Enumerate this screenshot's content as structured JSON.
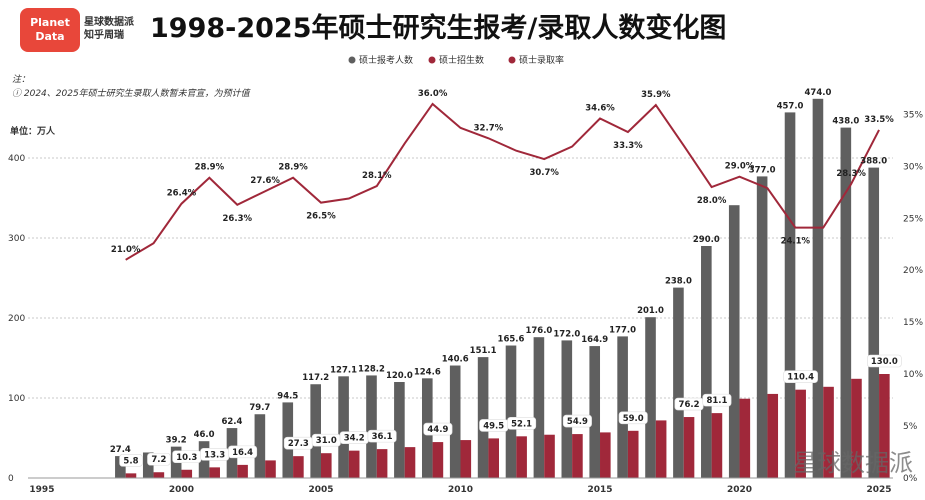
{
  "header": {
    "logo_line1": "Planet",
    "logo_line2": "Data",
    "brand_line1": "星球数据派",
    "brand_line2": "知乎周瑞",
    "title": "1998-2025年硕士研究生报考/录取人数变化图"
  },
  "note": {
    "line1": "注：",
    "line2": "ⓘ 2024、2025年硕士研究生录取人数暂未官宣，为预计值"
  },
  "unit_label": "单位：万人",
  "watermark": "星球数据派",
  "colors": {
    "applicants": "#5f5f5f",
    "admitted": "#a0283a",
    "rate_line": "#a0283a"
  },
  "chart_data": {
    "type": "bar",
    "series": [
      {
        "name": "硕士报考人数",
        "type": "bar",
        "x": [
          1998,
          1999,
          2000,
          2001,
          2002,
          2003,
          2004,
          2005,
          2006,
          2007,
          2008,
          2009,
          2010,
          2011,
          2012,
          2013,
          2014,
          2015,
          2016,
          2017,
          2018,
          2019,
          2020,
          2021,
          2022,
          2023,
          2024,
          2025
        ],
        "values": [
          27.4,
          31.9,
          39.2,
          46.0,
          62.4,
          79.7,
          94.5,
          117.2,
          127.1,
          128.2,
          120.0,
          124.6,
          140.6,
          151.1,
          165.6,
          176.0,
          172.0,
          164.9,
          177.0,
          201.0,
          238.0,
          290.0,
          341.0,
          377.0,
          457.0,
          474.0,
          438.0,
          388.0
        ],
        "labels": [
          "27.4",
          "",
          "39.2",
          "46.0",
          "62.4",
          "79.7",
          "94.5",
          "117.2",
          "127.1",
          "128.2",
          "120.0",
          "124.6",
          "140.6",
          "151.1",
          "165.6",
          "176.0",
          "172.0",
          "164.9",
          "177.0",
          "201.0",
          "238.0",
          "290.0",
          "",
          "377.0",
          "457.0",
          "474.0",
          "438.0",
          "388.0"
        ]
      },
      {
        "name": "硕士招生数",
        "type": "bar",
        "x": [
          1998,
          1999,
          2000,
          2001,
          2002,
          2003,
          2004,
          2005,
          2006,
          2007,
          2008,
          2009,
          2010,
          2011,
          2012,
          2013,
          2014,
          2015,
          2016,
          2017,
          2018,
          2019,
          2020,
          2021,
          2022,
          2023,
          2024,
          2025
        ],
        "values": [
          5.8,
          7.2,
          10.3,
          13.3,
          16.4,
          22.0,
          27.3,
          31.0,
          34.2,
          36.1,
          38.6,
          44.9,
          47.4,
          49.5,
          52.1,
          54.1,
          54.9,
          57.0,
          59.0,
          72.0,
          76.2,
          81.1,
          99.1,
          105.1,
          110.4,
          114.0,
          124.0,
          130.0
        ],
        "labels": [
          "5.8",
          "7.2",
          "10.3",
          "13.3",
          "16.4",
          "",
          "27.3",
          "31.0",
          "34.2",
          "36.1",
          "",
          "44.9",
          "",
          "49.5",
          "52.1",
          "",
          "54.9",
          "",
          "59.0",
          "",
          "76.2",
          "81.1",
          "",
          "",
          "110.4",
          "",
          "",
          "130.0"
        ]
      },
      {
        "name": "硕士录取率",
        "type": "line",
        "x": [
          1998,
          1999,
          2000,
          2001,
          2002,
          2003,
          2004,
          2005,
          2006,
          2007,
          2008,
          2009,
          2010,
          2011,
          2012,
          2013,
          2014,
          2015,
          2016,
          2017,
          2018,
          2019,
          2020,
          2021,
          2022,
          2023,
          2024,
          2025
        ],
        "values": [
          21.0,
          22.6,
          26.4,
          28.9,
          26.3,
          27.6,
          28.9,
          26.5,
          26.9,
          28.1,
          32.2,
          36.0,
          33.7,
          32.7,
          31.5,
          30.7,
          31.9,
          34.6,
          33.3,
          35.9,
          32.0,
          28.0,
          29.0,
          27.9,
          24.1,
          24.1,
          28.3,
          33.5
        ],
        "labels": [
          "21.0%",
          "",
          "26.4%",
          "28.9%",
          "26.3%",
          "27.6%",
          "28.9%",
          "26.5%",
          "",
          "28.1%",
          "",
          "36.0%",
          "",
          "32.7%",
          "",
          "30.7%",
          "",
          "34.6%",
          "33.3%",
          "35.9%",
          "",
          "28.0%",
          "29.0%",
          "",
          "24.1%",
          "",
          "28.3%",
          "33.5%"
        ]
      }
    ],
    "x_ticks": [
      "1995",
      "2000",
      "2005",
      "2010",
      "2015",
      "2020",
      "2025"
    ],
    "x_tick_values": [
      1995,
      2000,
      2005,
      2010,
      2015,
      2020,
      2025
    ],
    "xlim": [
      1994.5,
      2025.5
    ],
    "y_left_ticks": [
      "0",
      "100",
      "200",
      "300",
      "400"
    ],
    "ylim_left": [
      0,
      500
    ],
    "y_right_ticks": [
      "0%",
      "5%",
      "10%",
      "15%",
      "20%",
      "25%",
      "30%",
      "35%"
    ],
    "ylim_right": [
      0,
      38.5
    ],
    "grid": true,
    "legend_position": "top-center"
  }
}
